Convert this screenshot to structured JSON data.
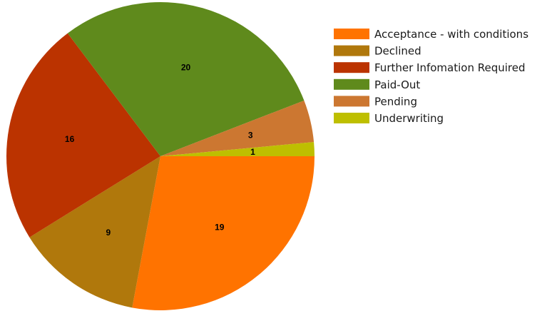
{
  "chart_data": {
    "type": "pie",
    "categories": [
      "Acceptance - with conditions",
      "Declined",
      "Further Infomation Required",
      "Paid-Out",
      "Pending",
      "Underwriting"
    ],
    "values": [
      19,
      9,
      16,
      20,
      3,
      1
    ],
    "colors": [
      "#ff7300",
      "#b0780c",
      "#bb3300",
      "#5f8a1c",
      "#cc7731",
      "#bebf00"
    ],
    "legend_position": "top-right",
    "start_angle_deg": 0,
    "direction": "clockwise"
  }
}
